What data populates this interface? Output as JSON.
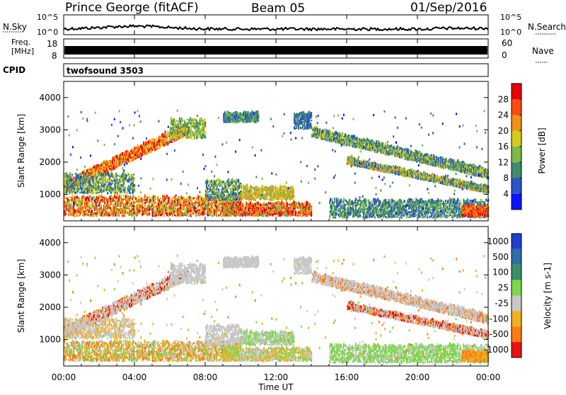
{
  "header": {
    "station": "Prince George (fitACF)",
    "beam": "Beam 05",
    "date": "01/Sep/2016"
  },
  "summary_panels": {
    "nsky_label": "N.Sky",
    "nsky_ticks": [
      "10^5",
      "10^0"
    ],
    "nsky_right_ticks": [
      "10^5",
      "10^0"
    ],
    "nsearch_label": "N.Search",
    "freq_label_line1": "Freq.",
    "freq_label_line2": "[MHz]",
    "freq_ticks": [
      "18",
      "8"
    ],
    "nave_ticks": [
      "60",
      "0"
    ],
    "nave_label": "Nave",
    "cpid_label": "CPID",
    "cpid_value": "twofsound 3503"
  },
  "chart_data": [
    {
      "type": "heatmap",
      "name": "power",
      "ylabel": "Slant Range [km]",
      "ylim": [
        180,
        4500
      ],
      "yticks": [
        1000,
        2000,
        3000,
        4000
      ],
      "colorbar_label": "Power [dB]",
      "colorbar_ticks": [
        4,
        8,
        12,
        16,
        20,
        24,
        28
      ],
      "colorbar_range": [
        0,
        32
      ],
      "colors": [
        "#0a14ff",
        "#2a55c8",
        "#3f8c6a",
        "#7cb84c",
        "#d8c81c",
        "#f39018",
        "#ff4a10",
        "#e80008"
      ]
    },
    {
      "type": "heatmap",
      "name": "velocity",
      "ylabel": "Slant Range [km]",
      "ylim": [
        180,
        4500
      ],
      "yticks": [
        1000,
        2000,
        3000,
        4000
      ],
      "colorbar_label": "Velocity [m s-1]",
      "colorbar_ticks": [
        "1000",
        "500",
        "100",
        "25",
        "-25",
        "-100",
        "-500",
        "-1000"
      ],
      "colors": [
        "#1f3fd0",
        "#2e6ea8",
        "#3a8e6a",
        "#7ed64a",
        "#c8c8c8",
        "#f0b020",
        "#ff7a10",
        "#e81010"
      ]
    }
  ],
  "xaxis": {
    "label": "Time UT",
    "ticks": [
      "00:00",
      "04:00",
      "08:00",
      "12:00",
      "16:00",
      "20:00",
      "00:00"
    ],
    "range_hours": [
      0,
      24
    ]
  }
}
